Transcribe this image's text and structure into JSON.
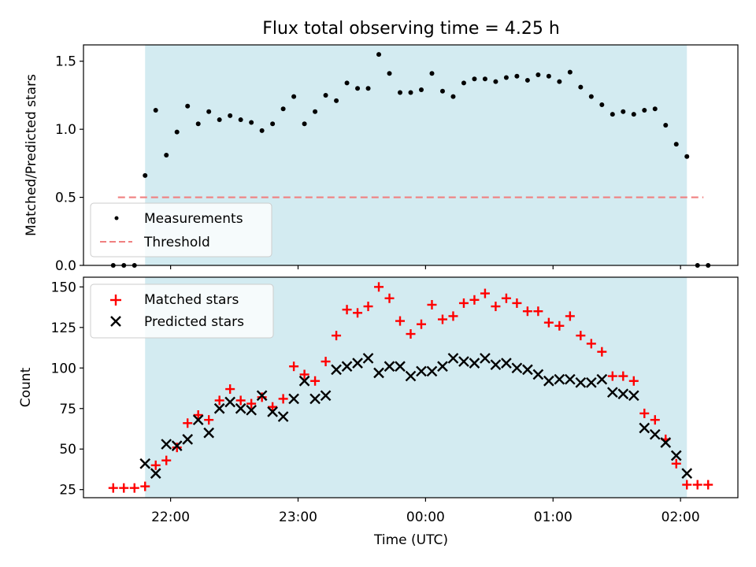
{
  "chart_data": [
    {
      "type": "scatter",
      "title": "Flux total observing time = 4.25 h",
      "ylabel": "Matched/Predicted stars",
      "xlabel": "",
      "ylim": [
        0,
        1.62
      ],
      "yticks": [
        0,
        0.5,
        1.0,
        1.5
      ],
      "ytick_labels": [
        "0.0",
        "0.5",
        "1.0",
        "1.5"
      ],
      "grid": false,
      "legend": "lower-left",
      "observing_window": [
        "21:48",
        "02:03"
      ],
      "observing_window_color": "#d3ebf1",
      "series": [
        {
          "name": "Measurements",
          "marker": "dot",
          "color": "#000000",
          "x": [
            "21:33",
            "21:38",
            "21:43",
            "21:48",
            "21:53",
            "21:58",
            "22:03",
            "22:08",
            "22:13",
            "22:18",
            "22:23",
            "22:28",
            "22:33",
            "22:38",
            "22:43",
            "22:48",
            "22:53",
            "22:58",
            "23:03",
            "23:08",
            "23:13",
            "23:18",
            "23:23",
            "23:28",
            "23:33",
            "23:38",
            "23:43",
            "23:48",
            "23:53",
            "23:58",
            "00:03",
            "00:08",
            "00:13",
            "00:18",
            "00:23",
            "00:28",
            "00:33",
            "00:38",
            "00:43",
            "00:48",
            "00:53",
            "00:58",
            "01:03",
            "01:08",
            "01:13",
            "01:18",
            "01:23",
            "01:28",
            "01:33",
            "01:38",
            "01:43",
            "01:48",
            "01:53",
            "01:58",
            "02:03",
            "02:08",
            "02:13"
          ],
          "y": [
            0,
            0,
            0,
            0.66,
            1.14,
            0.81,
            0.98,
            1.17,
            1.04,
            1.13,
            1.07,
            1.1,
            1.07,
            1.05,
            0.99,
            1.04,
            1.15,
            1.24,
            1.04,
            1.13,
            1.25,
            1.21,
            1.34,
            1.3,
            1.3,
            1.55,
            1.41,
            1.27,
            1.27,
            1.29,
            1.41,
            1.28,
            1.24,
            1.34,
            1.37,
            1.37,
            1.35,
            1.38,
            1.39,
            1.36,
            1.4,
            1.39,
            1.35,
            1.42,
            1.31,
            1.24,
            1.18,
            1.11,
            1.13,
            1.11,
            1.14,
            1.15,
            1.03,
            0.89,
            0.8,
            0,
            0
          ]
        },
        {
          "name": "Threshold",
          "marker": "dashed-line",
          "color": "#f08080",
          "x": [
            "21:33",
            "02:13"
          ],
          "y": [
            0.5,
            0.5
          ]
        }
      ]
    },
    {
      "type": "scatter",
      "title": "",
      "ylabel": "Count",
      "xlabel": "Time (UTC)",
      "ylim": [
        20,
        156
      ],
      "yticks": [
        25,
        50,
        75,
        100,
        125,
        150
      ],
      "ytick_labels": [
        "25",
        "50",
        "75",
        "100",
        "125",
        "150"
      ],
      "xticks": [
        "22:00",
        "23:00",
        "00:00",
        "01:00",
        "02:00"
      ],
      "xtick_labels": [
        "22:00",
        "23:00",
        "00:00",
        "01:00",
        "02:00"
      ],
      "grid": false,
      "legend": "top-left",
      "observing_window": [
        "21:48",
        "02:03"
      ],
      "observing_window_color": "#d3ebf1",
      "series": [
        {
          "name": "Matched stars",
          "marker": "plus",
          "color": "#ff0000",
          "x": [
            "21:33",
            "21:38",
            "21:43",
            "21:48",
            "21:53",
            "21:58",
            "22:03",
            "22:08",
            "22:13",
            "22:18",
            "22:23",
            "22:28",
            "22:33",
            "22:38",
            "22:43",
            "22:48",
            "22:53",
            "22:58",
            "23:03",
            "23:08",
            "23:13",
            "23:18",
            "23:23",
            "23:28",
            "23:33",
            "23:38",
            "23:43",
            "23:48",
            "23:53",
            "23:58",
            "00:03",
            "00:08",
            "00:13",
            "00:18",
            "00:23",
            "00:28",
            "00:33",
            "00:38",
            "00:43",
            "00:48",
            "00:53",
            "00:58",
            "01:03",
            "01:08",
            "01:13",
            "01:18",
            "01:23",
            "01:28",
            "01:33",
            "01:38",
            "01:43",
            "01:48",
            "01:53",
            "01:58",
            "02:03",
            "02:08",
            "02:13"
          ],
          "y": [
            26,
            26,
            26,
            27,
            40,
            43,
            51,
            66,
            71,
            68,
            80,
            87,
            80,
            78,
            82,
            76,
            81,
            101,
            96,
            92,
            104,
            120,
            136,
            134,
            138,
            150,
            143,
            129,
            121,
            127,
            139,
            130,
            132,
            140,
            142,
            146,
            138,
            143,
            140,
            135,
            135,
            128,
            126,
            132,
            120,
            115,
            110,
            95,
            95,
            92,
            72,
            68,
            56,
            41,
            28,
            28,
            28
          ]
        },
        {
          "name": "Predicted stars",
          "marker": "x",
          "color": "#000000",
          "x": [
            "21:48",
            "21:53",
            "21:58",
            "22:03",
            "22:08",
            "22:13",
            "22:18",
            "22:23",
            "22:28",
            "22:33",
            "22:38",
            "22:43",
            "22:48",
            "22:53",
            "22:58",
            "23:03",
            "23:08",
            "23:13",
            "23:18",
            "23:23",
            "23:28",
            "23:33",
            "23:38",
            "23:43",
            "23:48",
            "23:53",
            "23:58",
            "00:03",
            "00:08",
            "00:13",
            "00:18",
            "00:23",
            "00:28",
            "00:33",
            "00:38",
            "00:43",
            "00:48",
            "00:53",
            "00:58",
            "01:03",
            "01:08",
            "01:13",
            "01:18",
            "01:23",
            "01:28",
            "01:33",
            "01:38",
            "01:43",
            "01:48",
            "01:53",
            "01:58",
            "02:03"
          ],
          "y": [
            41,
            35,
            53,
            52,
            56,
            68,
            60,
            75,
            79,
            75,
            74,
            83,
            73,
            70,
            81,
            92,
            81,
            83,
            99,
            101,
            103,
            106,
            97,
            101,
            101,
            95,
            98,
            98,
            101,
            106,
            104,
            103,
            106,
            102,
            103,
            100,
            99,
            96,
            92,
            93,
            93,
            91,
            91,
            93,
            85,
            84,
            83,
            63,
            59,
            54,
            46,
            35
          ]
        }
      ]
    }
  ]
}
